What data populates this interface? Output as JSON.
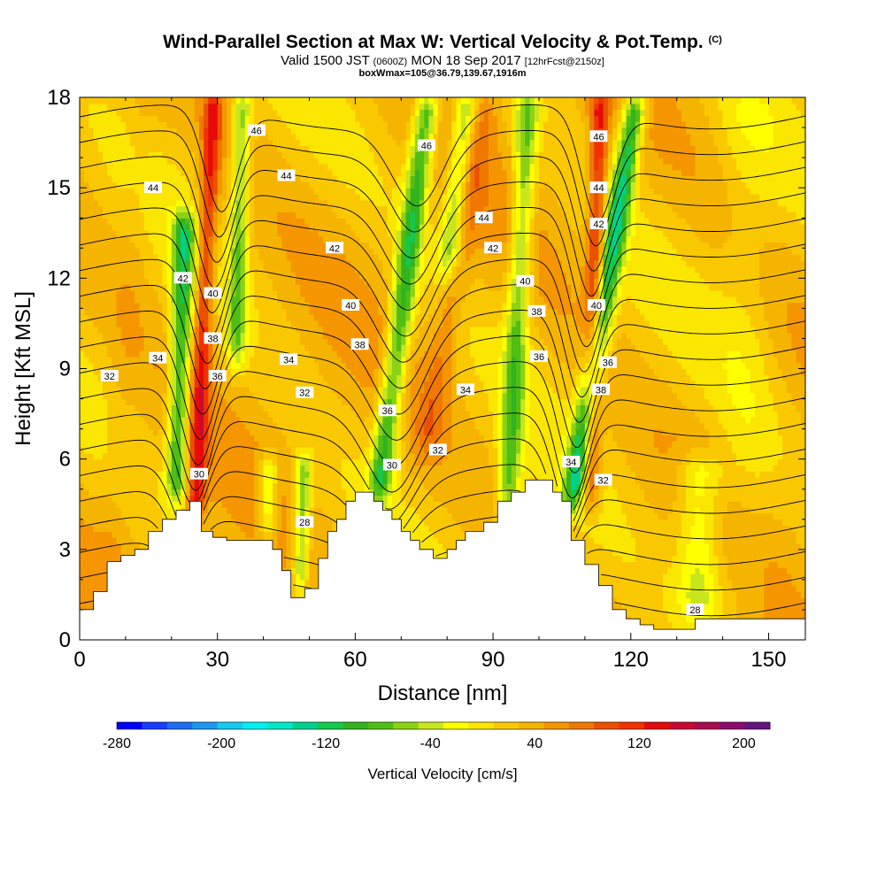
{
  "title": {
    "main": "Wind-Parallel Section at Max W: Vertical Velocity & Pot.Temp.",
    "copyright": "(C)",
    "valid_prefix": "Valid 1500 JST",
    "valid_utc": "(0600Z)",
    "valid_date": "MON 18 Sep 2017",
    "forecast": "[12hrFcst@2150z]",
    "box_info": "boxWmax=105@36.79,139.67,1916m"
  },
  "chart_data": {
    "type": "heatmap",
    "xlabel": "Distance [nm]",
    "ylabel": "Height [Kft MSL]",
    "xlim": [
      0,
      158
    ],
    "ylim": [
      0,
      18
    ],
    "x_ticks": [
      0,
      30,
      60,
      90,
      120,
      150
    ],
    "y_ticks": [
      0,
      3,
      6,
      9,
      12,
      15,
      18
    ],
    "colorbar": {
      "label": "Vertical Velocity [cm/s]",
      "min": -280,
      "max": 220,
      "step": 20,
      "tick_labels": [
        -280,
        -200,
        -120,
        -40,
        40,
        120,
        200
      ],
      "colors": [
        "#0000ff",
        "#1a3cff",
        "#1e6cf0",
        "#1e96f0",
        "#14c8f0",
        "#00f0f0",
        "#00e6c8",
        "#00d28c",
        "#14c850",
        "#32b41e",
        "#50be14",
        "#8cd214",
        "#c8e61e",
        "#ffff00",
        "#fae600",
        "#fac800",
        "#f5b400",
        "#f59600",
        "#f07800",
        "#eb5000",
        "#f03200",
        "#e60a0a",
        "#c80a32",
        "#aa0a50",
        "#8c0a6e",
        "#64147d"
      ]
    },
    "vertical_velocity_features": [
      {
        "x": 25,
        "base": 3.8,
        "top": 18,
        "value": 140,
        "tilt": 0.18,
        "w": 2.0
      },
      {
        "x": 21,
        "base": 4.5,
        "top": 14,
        "value": -90,
        "tilt": 0.12,
        "w": 2.4
      },
      {
        "x": 34,
        "base": 9,
        "top": 18,
        "value": -50,
        "tilt": 0.1,
        "w": 2.0
      },
      {
        "x": 65,
        "base": 4.5,
        "top": 18,
        "value": -90,
        "tilt": 0.5,
        "w": 2.6
      },
      {
        "x": 75,
        "base": 6,
        "top": 18,
        "value": 80,
        "tilt": 0.7,
        "w": 3.0
      },
      {
        "x": 80,
        "base": 12,
        "top": 18,
        "value": -60,
        "tilt": 0.45,
        "w": 2.6
      },
      {
        "x": 93,
        "base": 3.6,
        "top": 18,
        "value": -60,
        "tilt": 0.2,
        "w": 2.4
      },
      {
        "x": 107,
        "base": 4.3,
        "top": 18,
        "value": -110,
        "tilt": 0.65,
        "w": 2.5
      },
      {
        "x": 111,
        "base": 4.3,
        "top": 18,
        "value": 140,
        "tilt": 0.1,
        "w": 2.0
      },
      {
        "x": 48,
        "base": 1.4,
        "top": 6,
        "value": -60,
        "tilt": 0.1,
        "w": 1.8
      },
      {
        "x": 41,
        "base": 3.3,
        "top": 6,
        "value": -40,
        "tilt": 0.0,
        "w": 2.0
      },
      {
        "x": 145,
        "base": 0.5,
        "top": 18,
        "value": 20,
        "tilt": 0.0,
        "w": 6.0
      },
      {
        "x": 6,
        "base": 1.5,
        "top": 18,
        "value": 50,
        "tilt": 0.3,
        "w": 3.0
      },
      {
        "x": 135,
        "base": 0.5,
        "top": 6,
        "value": -30,
        "tilt": 0.0,
        "w": 5.0
      }
    ],
    "terrain": {
      "x": [
        0,
        3,
        3,
        6,
        6,
        9,
        9,
        12,
        12,
        15,
        15,
        18,
        18,
        21,
        21,
        24,
        24,
        26.5,
        26.5,
        29,
        29,
        32,
        32,
        34,
        34,
        36,
        36,
        38,
        38,
        40,
        40,
        42,
        42,
        44,
        44,
        46,
        46,
        49,
        49,
        52,
        52,
        54,
        54,
        56,
        56,
        58,
        58,
        60,
        60,
        62,
        62,
        64,
        64,
        66,
        66,
        68,
        68,
        70,
        70,
        72,
        72,
        74,
        74,
        77,
        77,
        80,
        80,
        82,
        82,
        84,
        84,
        86,
        86,
        88,
        88,
        91,
        91,
        94,
        94,
        97,
        97,
        100,
        100,
        103,
        103,
        105,
        105,
        107,
        107,
        110,
        110,
        113,
        113,
        116,
        116,
        119,
        119,
        122,
        122,
        125,
        125,
        128,
        128,
        131,
        131,
        134,
        134,
        137,
        137,
        140,
        140,
        158
      ],
      "h": [
        1.0,
        1.0,
        1.6,
        1.6,
        2.6,
        2.6,
        2.8,
        2.8,
        3.0,
        3.0,
        3.6,
        3.6,
        4.0,
        4.0,
        4.3,
        4.3,
        4.6,
        4.6,
        3.6,
        3.6,
        3.4,
        3.4,
        3.3,
        3.3,
        3.3,
        3.3,
        3.3,
        3.3,
        3.3,
        3.3,
        3.3,
        3.3,
        3.0,
        3.0,
        2.3,
        2.3,
        1.4,
        1.4,
        1.7,
        1.7,
        2.7,
        2.7,
        3.6,
        3.6,
        4.0,
        4.0,
        4.6,
        4.6,
        4.9,
        4.9,
        4.9,
        4.9,
        4.6,
        4.6,
        4.3,
        4.3,
        4.0,
        4.0,
        3.6,
        3.6,
        3.3,
        3.3,
        3.0,
        3.0,
        2.7,
        2.7,
        3.0,
        3.0,
        3.3,
        3.3,
        3.6,
        3.6,
        3.6,
        3.6,
        3.9,
        3.9,
        4.6,
        4.6,
        4.9,
        4.9,
        5.3,
        5.3,
        5.3,
        5.3,
        4.9,
        4.9,
        4.6,
        4.6,
        3.3,
        3.3,
        2.5,
        2.5,
        1.8,
        1.8,
        1.0,
        1.0,
        0.7,
        0.7,
        0.5,
        0.5,
        0.35,
        0.35,
        0.35,
        0.35,
        0.35,
        0.35,
        0.7,
        0.7,
        0.7,
        0.7,
        0.7,
        0.7
      ]
    },
    "potential_temperature_contours": {
      "levels_min": 28,
      "levels_max": 47,
      "step": 1,
      "labels": [
        {
          "x": 6.5,
          "y": 8.75,
          "text": "32"
        },
        {
          "x": 17,
          "y": 9.35,
          "text": "34"
        },
        {
          "x": 26,
          "y": 5.5,
          "text": "30"
        },
        {
          "x": 30,
          "y": 8.75,
          "text": "36"
        },
        {
          "x": 29,
          "y": 10.0,
          "text": "38"
        },
        {
          "x": 29,
          "y": 11.5,
          "text": "40"
        },
        {
          "x": 22.5,
          "y": 12.0,
          "text": "42"
        },
        {
          "x": 16,
          "y": 15.0,
          "text": "44"
        },
        {
          "x": 38.5,
          "y": 16.9,
          "text": "46"
        },
        {
          "x": 45,
          "y": 15.4,
          "text": "44"
        },
        {
          "x": 55.5,
          "y": 13.0,
          "text": "42"
        },
        {
          "x": 59,
          "y": 11.1,
          "text": "40"
        },
        {
          "x": 61,
          "y": 9.8,
          "text": "38"
        },
        {
          "x": 45.5,
          "y": 9.3,
          "text": "34"
        },
        {
          "x": 49,
          "y": 8.2,
          "text": "32"
        },
        {
          "x": 67,
          "y": 7.6,
          "text": "36"
        },
        {
          "x": 68,
          "y": 5.8,
          "text": "30"
        },
        {
          "x": 78,
          "y": 6.3,
          "text": "32"
        },
        {
          "x": 84,
          "y": 8.3,
          "text": "34"
        },
        {
          "x": 49,
          "y": 3.9,
          "text": "28"
        },
        {
          "x": 75.5,
          "y": 16.4,
          "text": "46"
        },
        {
          "x": 88,
          "y": 14.0,
          "text": "44"
        },
        {
          "x": 90,
          "y": 13.0,
          "text": "42"
        },
        {
          "x": 97,
          "y": 11.9,
          "text": "40"
        },
        {
          "x": 99.5,
          "y": 10.9,
          "text": "38"
        },
        {
          "x": 100,
          "y": 9.4,
          "text": "36"
        },
        {
          "x": 107,
          "y": 5.9,
          "text": "34"
        },
        {
          "x": 114,
          "y": 5.3,
          "text": "32"
        },
        {
          "x": 113.5,
          "y": 8.3,
          "text": "38"
        },
        {
          "x": 115,
          "y": 9.2,
          "text": "36"
        },
        {
          "x": 112.5,
          "y": 11.1,
          "text": "40"
        },
        {
          "x": 113,
          "y": 13.8,
          "text": "42"
        },
        {
          "x": 113,
          "y": 15.0,
          "text": "44"
        },
        {
          "x": 113,
          "y": 16.7,
          "text": "46"
        },
        {
          "x": 134,
          "y": 1.0,
          "text": "28"
        }
      ]
    }
  }
}
